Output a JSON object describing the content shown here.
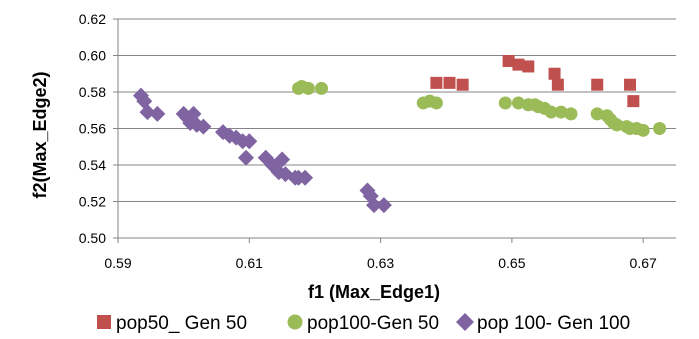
{
  "chart_data": {
    "type": "scatter",
    "xlabel": "f1 (Max_Edge1)",
    "ylabel": "f2(Max_Edge2)",
    "xlim": [
      0.59,
      0.675
    ],
    "ylim": [
      0.5,
      0.62
    ],
    "xticks": [
      0.59,
      0.61,
      0.63,
      0.65,
      0.67
    ],
    "yticks": [
      0.5,
      0.52,
      0.54,
      0.56,
      0.58,
      0.6,
      0.62
    ],
    "xtick_labels": [
      "0.59",
      "0.61",
      "0.63",
      "0.65",
      "0.67"
    ],
    "ytick_labels": [
      "0.50",
      "0.52",
      "0.54",
      "0.56",
      "0.58",
      "0.60",
      "0.62"
    ],
    "grid": "horizontal",
    "legend_position": "bottom",
    "series": [
      {
        "name": "pop50_ Gen 50",
        "marker": "square",
        "color": "#C0504D",
        "points": [
          [
            0.6385,
            0.585
          ],
          [
            0.6405,
            0.585
          ],
          [
            0.6425,
            0.584
          ],
          [
            0.6495,
            0.597
          ],
          [
            0.651,
            0.595
          ],
          [
            0.6525,
            0.594
          ],
          [
            0.6565,
            0.59
          ],
          [
            0.657,
            0.584
          ],
          [
            0.663,
            0.584
          ],
          [
            0.668,
            0.584
          ],
          [
            0.6685,
            0.575
          ]
        ]
      },
      {
        "name": "pop100-Gen 50",
        "marker": "circle",
        "color": "#9BBB59",
        "points": [
          [
            0.6175,
            0.582
          ],
          [
            0.618,
            0.583
          ],
          [
            0.619,
            0.582
          ],
          [
            0.621,
            0.582
          ],
          [
            0.6365,
            0.574
          ],
          [
            0.6375,
            0.575
          ],
          [
            0.6385,
            0.574
          ],
          [
            0.649,
            0.574
          ],
          [
            0.651,
            0.574
          ],
          [
            0.6525,
            0.573
          ],
          [
            0.6535,
            0.573
          ],
          [
            0.654,
            0.572
          ],
          [
            0.655,
            0.571
          ],
          [
            0.656,
            0.569
          ],
          [
            0.6575,
            0.569
          ],
          [
            0.659,
            0.568
          ],
          [
            0.663,
            0.568
          ],
          [
            0.6645,
            0.567
          ],
          [
            0.665,
            0.565
          ],
          [
            0.6655,
            0.563
          ],
          [
            0.666,
            0.562
          ],
          [
            0.6675,
            0.561
          ],
          [
            0.668,
            0.56
          ],
          [
            0.669,
            0.56
          ],
          [
            0.67,
            0.559
          ],
          [
            0.6725,
            0.56
          ]
        ]
      },
      {
        "name": "pop 100- Gen 100",
        "marker": "diamond",
        "color": "#8064A2",
        "points": [
          [
            0.5935,
            0.578
          ],
          [
            0.594,
            0.575
          ],
          [
            0.5945,
            0.569
          ],
          [
            0.596,
            0.568
          ],
          [
            0.6,
            0.568
          ],
          [
            0.6005,
            0.566
          ],
          [
            0.601,
            0.563
          ],
          [
            0.6015,
            0.568
          ],
          [
            0.602,
            0.562
          ],
          [
            0.603,
            0.561
          ],
          [
            0.606,
            0.558
          ],
          [
            0.607,
            0.556
          ],
          [
            0.608,
            0.555
          ],
          [
            0.609,
            0.553
          ],
          [
            0.6095,
            0.544
          ],
          [
            0.61,
            0.553
          ],
          [
            0.6125,
            0.544
          ],
          [
            0.6135,
            0.54
          ],
          [
            0.6145,
            0.536
          ],
          [
            0.615,
            0.543
          ],
          [
            0.6155,
            0.535
          ],
          [
            0.617,
            0.533
          ],
          [
            0.6175,
            0.533
          ],
          [
            0.6185,
            0.533
          ],
          [
            0.628,
            0.526
          ],
          [
            0.6285,
            0.523
          ],
          [
            0.629,
            0.518
          ],
          [
            0.6305,
            0.518
          ]
        ]
      }
    ]
  }
}
